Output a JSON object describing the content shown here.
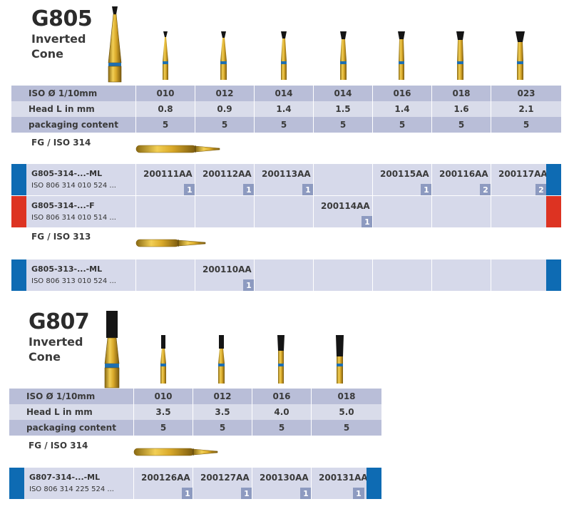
{
  "g805": {
    "title": "G805",
    "subtitle_line1": "Inverted",
    "subtitle_line2": "Cone",
    "spec": {
      "iso_label": "ISO Ø 1/10mm",
      "head_label": "Head L in mm",
      "pack_label": "packaging content",
      "iso": [
        "010",
        "012",
        "014",
        "014",
        "016",
        "018",
        "023"
      ],
      "head": [
        "0.8",
        "0.9",
        "1.4",
        "1.5",
        "1.4",
        "1.6",
        "2.1"
      ],
      "pack": [
        "5",
        "5",
        "5",
        "5",
        "5",
        "5",
        "5"
      ]
    },
    "section314": {
      "label": "FG / ISO 314",
      "rows": [
        {
          "name": "G805-314-...-ML",
          "iso": "ISO 806 314 010 524 ...",
          "color": "#0e6bb3",
          "cells": [
            {
              "code": "200111AA",
              "badge": "1"
            },
            {
              "code": "200112AA",
              "badge": "1"
            },
            {
              "code": "200113AA",
              "badge": "1"
            },
            {
              "code": "",
              "badge": ""
            },
            {
              "code": "200115AA",
              "badge": "1"
            },
            {
              "code": "200116AA",
              "badge": "2"
            },
            {
              "code": "200117AA",
              "badge": "2"
            }
          ]
        },
        {
          "name": "G805-314-...-F",
          "iso": "ISO 806 314 010 514 ...",
          "color": "#dd3322",
          "cells": [
            {
              "code": "",
              "badge": ""
            },
            {
              "code": "",
              "badge": ""
            },
            {
              "code": "",
              "badge": ""
            },
            {
              "code": "200114AA",
              "badge": "1"
            },
            {
              "code": "",
              "badge": ""
            },
            {
              "code": "",
              "badge": ""
            },
            {
              "code": "",
              "badge": ""
            }
          ]
        }
      ]
    },
    "section313": {
      "label": "FG / ISO 313",
      "rows": [
        {
          "name": "G805-313-...-ML",
          "iso": "ISO 806 313 010 524 ...",
          "color": "#0e6bb3",
          "cells": [
            {
              "code": "",
              "badge": ""
            },
            {
              "code": "200110AA",
              "badge": "1"
            },
            {
              "code": "",
              "badge": ""
            },
            {
              "code": "",
              "badge": ""
            },
            {
              "code": "",
              "badge": ""
            },
            {
              "code": "",
              "badge": ""
            },
            {
              "code": "",
              "badge": ""
            }
          ]
        }
      ]
    }
  },
  "g807": {
    "title": "G807",
    "subtitle_line1": "Inverted",
    "subtitle_line2": "Cone",
    "spec": {
      "iso_label": "ISO Ø 1/10mm",
      "head_label": "Head L in mm",
      "pack_label": "packaging content",
      "iso": [
        "010",
        "012",
        "016",
        "018"
      ],
      "head": [
        "3.5",
        "3.5",
        "4.0",
        "5.0"
      ],
      "pack": [
        "5",
        "5",
        "5",
        "5"
      ]
    },
    "section314": {
      "label": "FG / ISO 314",
      "rows": [
        {
          "name": "G807-314-...-ML",
          "iso": "ISO 806 314 225 524 ...",
          "color": "#0e6bb3",
          "cells": [
            {
              "code": "200126AA",
              "badge": "1"
            },
            {
              "code": "200127AA",
              "badge": "1"
            },
            {
              "code": "200130AA",
              "badge": "1"
            },
            {
              "code": "200131AA",
              "badge": "1"
            }
          ]
        }
      ]
    }
  }
}
